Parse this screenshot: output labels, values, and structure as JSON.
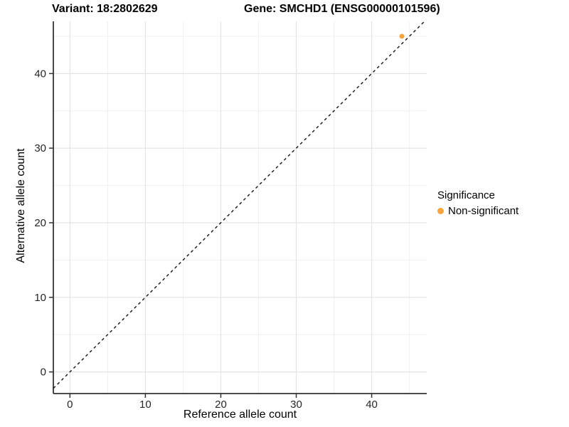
{
  "titles": {
    "variant": "Variant: 18:2802629",
    "gene": "Gene: SMCHD1 (ENSG00000101596)"
  },
  "legend": {
    "title": "Significance",
    "items": [
      {
        "label": "Non-significant",
        "color": "#F9A33C"
      }
    ]
  },
  "chart_data": {
    "type": "scatter",
    "title": "Variant: 18:2802629  Gene: SMCHD1 (ENSG00000101596)",
    "xlabel": "Reference allele count",
    "ylabel": "Alternative allele count",
    "xlim": [
      -2.2,
      47.3
    ],
    "ylim": [
      -2.9,
      47.0
    ],
    "x_ticks": [
      0,
      10,
      20,
      30,
      40
    ],
    "y_ticks": [
      0,
      10,
      20,
      30,
      40
    ],
    "x_minor_ticks": [
      5,
      15,
      25,
      35,
      45
    ],
    "y_minor_ticks": [
      5,
      15,
      25,
      35,
      45
    ],
    "grid": true,
    "legend_position": "right",
    "identity_line": {
      "type": "dashed",
      "slope": 1,
      "intercept": 0,
      "color": "#141414"
    },
    "series": [
      {
        "name": "Non-significant",
        "color": "#F9A33C",
        "points": [
          {
            "x": 44,
            "y": 45
          }
        ]
      }
    ]
  },
  "style_colors": {
    "grid_major": "#e4e4e4",
    "grid_minor": "#f0f0f0",
    "axis_line": "#333333",
    "tick_label": "#262626"
  }
}
